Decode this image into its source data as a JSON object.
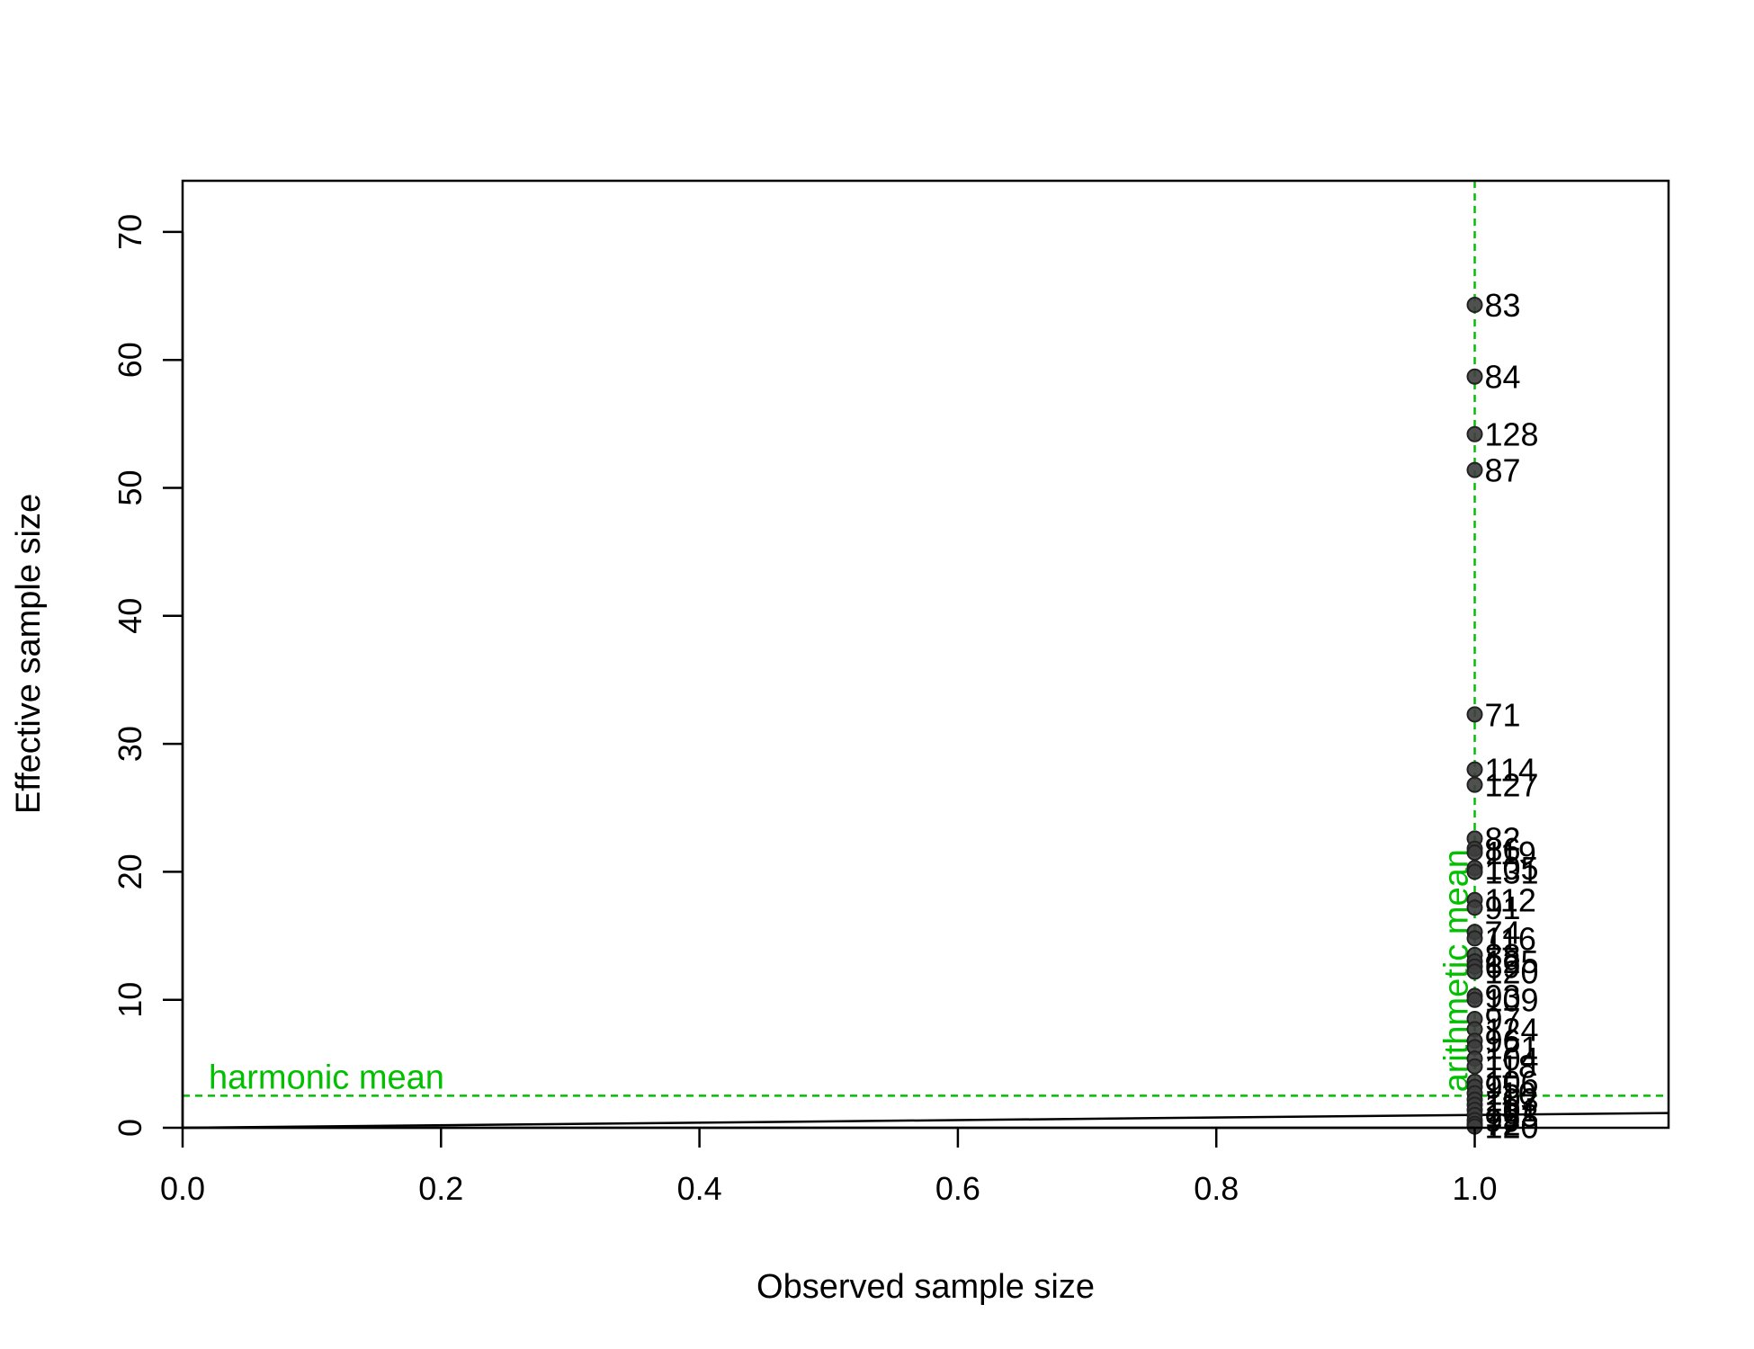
{
  "chart_data": {
    "type": "scatter",
    "xlabel": "Observed sample size",
    "ylabel": "Effective sample size",
    "xlim": [
      0,
      1.15
    ],
    "ylim": [
      0,
      74
    ],
    "x_ticks": [
      {
        "value": 0,
        "label": "0.0"
      },
      {
        "value": 0.2,
        "label": "0.2"
      },
      {
        "value": 0.4,
        "label": "0.4"
      },
      {
        "value": 0.6,
        "label": "0.6"
      },
      {
        "value": 0.8,
        "label": "0.8"
      },
      {
        "value": 1.0,
        "label": "1.0"
      }
    ],
    "y_ticks": [
      {
        "value": 0,
        "label": "0"
      },
      {
        "value": 10,
        "label": "10"
      },
      {
        "value": 20,
        "label": "20"
      },
      {
        "value": 30,
        "label": "30"
      },
      {
        "value": 40,
        "label": "40"
      },
      {
        "value": 50,
        "label": "50"
      },
      {
        "value": 60,
        "label": "60"
      },
      {
        "value": 70,
        "label": "70"
      }
    ],
    "point_color": "#3d3d3d",
    "reference_color": "#00c000",
    "identity_line": {
      "from": [
        0,
        0
      ],
      "to": [
        1.15,
        1.15
      ],
      "color": "#000000"
    },
    "harmonic_mean": {
      "value": 2.5,
      "label": "harmonic mean",
      "orientation": "horizontal"
    },
    "arithmetic_mean": {
      "value": 1.0,
      "label": "arithmetic mean",
      "orientation": "vertical"
    },
    "points": [
      {
        "x": 1,
        "y": 64.3,
        "label": "83"
      },
      {
        "x": 1,
        "y": 58.7,
        "label": "84"
      },
      {
        "x": 1,
        "y": 54.2,
        "label": "128"
      },
      {
        "x": 1,
        "y": 51.4,
        "label": "87"
      },
      {
        "x": 1,
        "y": 32.3,
        "label": "71"
      },
      {
        "x": 1,
        "y": 28.0,
        "label": "114"
      },
      {
        "x": 1,
        "y": 26.8,
        "label": "127"
      },
      {
        "x": 1,
        "y": 22.6,
        "label": "82"
      },
      {
        "x": 1,
        "y": 21.8,
        "label": "86"
      },
      {
        "x": 1,
        "y": 21.5,
        "label": "119"
      },
      {
        "x": 1,
        "y": 20.3,
        "label": "105"
      },
      {
        "x": 1,
        "y": 20.0,
        "label": "131"
      },
      {
        "x": 1,
        "y": 17.8,
        "label": "112"
      },
      {
        "x": 1,
        "y": 17.2,
        "label": "91"
      },
      {
        "x": 1,
        "y": 15.3,
        "label": "74"
      },
      {
        "x": 1,
        "y": 14.8,
        "label": "116"
      },
      {
        "x": 1,
        "y": 13.5,
        "label": "88"
      },
      {
        "x": 1,
        "y": 13.0,
        "label": "125"
      },
      {
        "x": 1,
        "y": 12.6,
        "label": "69"
      },
      {
        "x": 1,
        "y": 12.2,
        "label": "120"
      },
      {
        "x": 1,
        "y": 10.3,
        "label": "93"
      },
      {
        "x": 1,
        "y": 10.0,
        "label": "109"
      },
      {
        "x": 1,
        "y": 8.5,
        "label": "97"
      },
      {
        "x": 1,
        "y": 7.7,
        "label": "124"
      },
      {
        "x": 1,
        "y": 6.8,
        "label": "96"
      },
      {
        "x": 1,
        "y": 6.3,
        "label": "121"
      },
      {
        "x": 1,
        "y": 5.4,
        "label": "104"
      },
      {
        "x": 1,
        "y": 4.8,
        "label": "118"
      },
      {
        "x": 1,
        "y": 3.6,
        "label": "106"
      },
      {
        "x": 1,
        "y": 3.2,
        "label": "95"
      },
      {
        "x": 1,
        "y": 2.7,
        "label": "110"
      },
      {
        "x": 1,
        "y": 2.2,
        "label": "103"
      },
      {
        "x": 1,
        "y": 1.8,
        "label": "117"
      },
      {
        "x": 1,
        "y": 1.4,
        "label": "101"
      },
      {
        "x": 1,
        "y": 1.0,
        "label": "123"
      },
      {
        "x": 1,
        "y": 0.6,
        "label": "99"
      },
      {
        "x": 1,
        "y": 0.3,
        "label": "72"
      },
      {
        "x": 1,
        "y": 0.1,
        "label": "120"
      }
    ]
  }
}
